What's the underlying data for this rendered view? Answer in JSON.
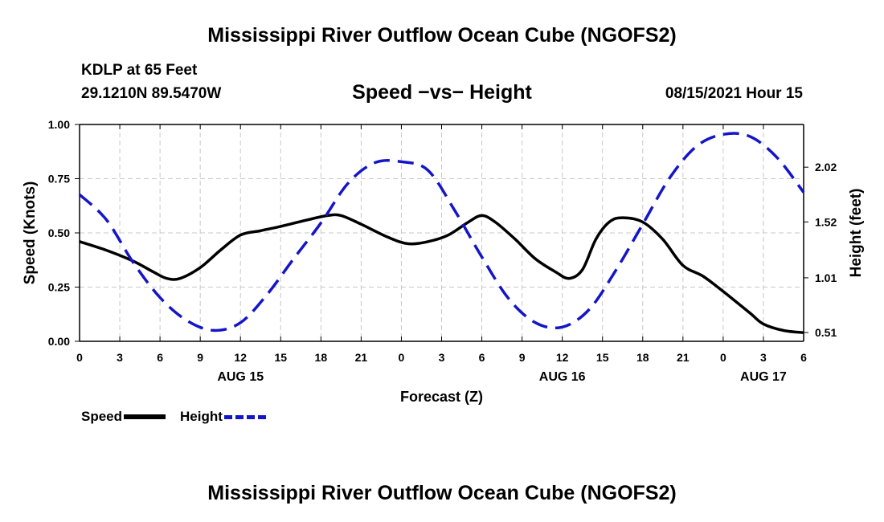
{
  "title_top": "Mississippi River Outflow Ocean Cube (NGOFS2)",
  "title_bottom": "Mississippi River Outflow Ocean Cube (NGOFS2)",
  "station": "KDLP at 65 Feet",
  "coords": "29.1210N  89.5470W",
  "subtitle": "Speed −vs− Height",
  "datetime": "08/15/2021 Hour 15",
  "colors": {
    "speed": "#000000",
    "height": "#1515c8",
    "grid": "#c8c8c8"
  },
  "legend": {
    "speed_label": "Speed",
    "height_label": "Height"
  },
  "chart_data": {
    "type": "line",
    "title": "Speed −vs− Height",
    "xlabel": "Forecast (Z)",
    "ylabel_left": "Speed (Knots)",
    "ylabel_right": "Height (feet)",
    "x_range_hours": [
      0,
      54
    ],
    "x_tick_hours": [
      0,
      3,
      6,
      9,
      12,
      15,
      18,
      21,
      24,
      27,
      30,
      33,
      36,
      39,
      42,
      45,
      48,
      51,
      54
    ],
    "x_tick_labels": [
      "0",
      "3",
      "6",
      "9",
      "12",
      "15",
      "18",
      "21",
      "0",
      "3",
      "6",
      "9",
      "12",
      "15",
      "18",
      "21",
      "0",
      "3",
      "6"
    ],
    "date_labels": [
      {
        "hour": 12,
        "label": "AUG 15"
      },
      {
        "hour": 36,
        "label": "AUG 16"
      },
      {
        "hour": 51,
        "label": "AUG 17"
      }
    ],
    "left_axis": {
      "range": [
        0,
        1
      ],
      "ticks": [
        0,
        0.25,
        0.5,
        0.75,
        1.0
      ],
      "tick_labels": [
        "0.00",
        "0.25",
        "0.50",
        "0.75",
        "1.00"
      ]
    },
    "right_axis": {
      "range": [
        0.43,
        2.41
      ],
      "ticks": [
        0.51,
        1.01,
        1.52,
        2.02
      ],
      "tick_labels": [
        "0.51",
        "1.01",
        "1.52",
        "2.02"
      ]
    },
    "series": [
      {
        "name": "Speed",
        "axis": "left",
        "style": "solid",
        "x": [
          0,
          2,
          4,
          5.5,
          6.5,
          7.5,
          9,
          10.5,
          12,
          13.5,
          15,
          17,
          18.5,
          19.5,
          21,
          23,
          24.5,
          26,
          27.5,
          29,
          30,
          31,
          32.5,
          34,
          35.5,
          36.5,
          37.5,
          38.5,
          39.5,
          40.5,
          42,
          43.5,
          45,
          46.5,
          48,
          50,
          51,
          52.5,
          54
        ],
        "values": [
          0.46,
          0.42,
          0.37,
          0.32,
          0.29,
          0.29,
          0.34,
          0.42,
          0.49,
          0.51,
          0.53,
          0.56,
          0.58,
          0.58,
          0.54,
          0.48,
          0.45,
          0.46,
          0.49,
          0.55,
          0.58,
          0.55,
          0.47,
          0.38,
          0.32,
          0.29,
          0.33,
          0.47,
          0.55,
          0.57,
          0.55,
          0.47,
          0.35,
          0.3,
          0.23,
          0.13,
          0.08,
          0.05,
          0.04
        ]
      },
      {
        "name": "Height",
        "axis": "right",
        "style": "dashed",
        "x": [
          0,
          2,
          4,
          6,
          8,
          10,
          12,
          14,
          16,
          18,
          20,
          22,
          24,
          26,
          28,
          30,
          32,
          34,
          36,
          38,
          40,
          42,
          44,
          46,
          48,
          50,
          52,
          54
        ],
        "values": [
          1.77,
          1.54,
          1.15,
          0.83,
          0.62,
          0.53,
          0.6,
          0.86,
          1.19,
          1.51,
          1.87,
          2.06,
          2.07,
          1.99,
          1.62,
          1.2,
          0.82,
          0.6,
          0.56,
          0.72,
          1.08,
          1.5,
          1.92,
          2.21,
          2.32,
          2.3,
          2.11,
          1.79
        ]
      }
    ]
  }
}
